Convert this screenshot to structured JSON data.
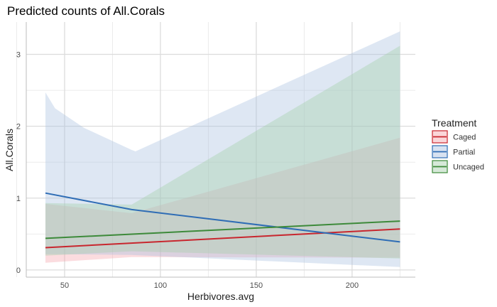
{
  "chart_data": {
    "type": "line",
    "title": "Predicted counts of All.Corals",
    "xlabel": "Herbivores.avg",
    "ylabel": "All.Corals",
    "xlim": [
      30,
      233
    ],
    "ylim": [
      -0.1,
      3.45
    ],
    "xticks": [
      50,
      100,
      150,
      200
    ],
    "yticks": [
      0,
      1,
      2,
      3
    ],
    "grid": true,
    "legend": {
      "title": "Treatment",
      "position": "right"
    },
    "series": [
      {
        "name": "Caged",
        "color": "#c8262e",
        "fill": "#f4a3aa",
        "x": [
          40,
          225
        ],
        "y": [
          0.31,
          0.57
        ],
        "lower": {
          "x": [
            40,
            85,
            225
          ],
          "y": [
            0.1,
            0.18,
            0.17
          ]
        },
        "upper": {
          "x": [
            40,
            85,
            225
          ],
          "y": [
            0.92,
            0.79,
            1.84
          ]
        }
      },
      {
        "name": "Partial",
        "color": "#2f6db5",
        "fill": "#a9bfe0",
        "x": [
          40,
          85,
          225
        ],
        "y": [
          1.07,
          0.84,
          0.39
        ],
        "lower": {
          "x": [
            40,
            85,
            225
          ],
          "y": [
            0.22,
            0.21,
            0.04
          ]
        },
        "upper": {
          "x": [
            40,
            45,
            60,
            85,
            87,
            225
          ],
          "y": [
            2.47,
            2.25,
            1.98,
            1.67,
            1.65,
            3.32
          ]
        }
      },
      {
        "name": "Uncaged",
        "color": "#3d8a3a",
        "fill": "#a3cfa9",
        "x": [
          40,
          225
        ],
        "y": [
          0.44,
          0.68
        ],
        "lower": {
          "x": [
            40,
            85,
            225
          ],
          "y": [
            0.2,
            0.26,
            0.16
          ]
        },
        "upper": {
          "x": [
            40,
            85,
            225
          ],
          "y": [
            0.93,
            0.91,
            3.12
          ]
        }
      }
    ]
  }
}
